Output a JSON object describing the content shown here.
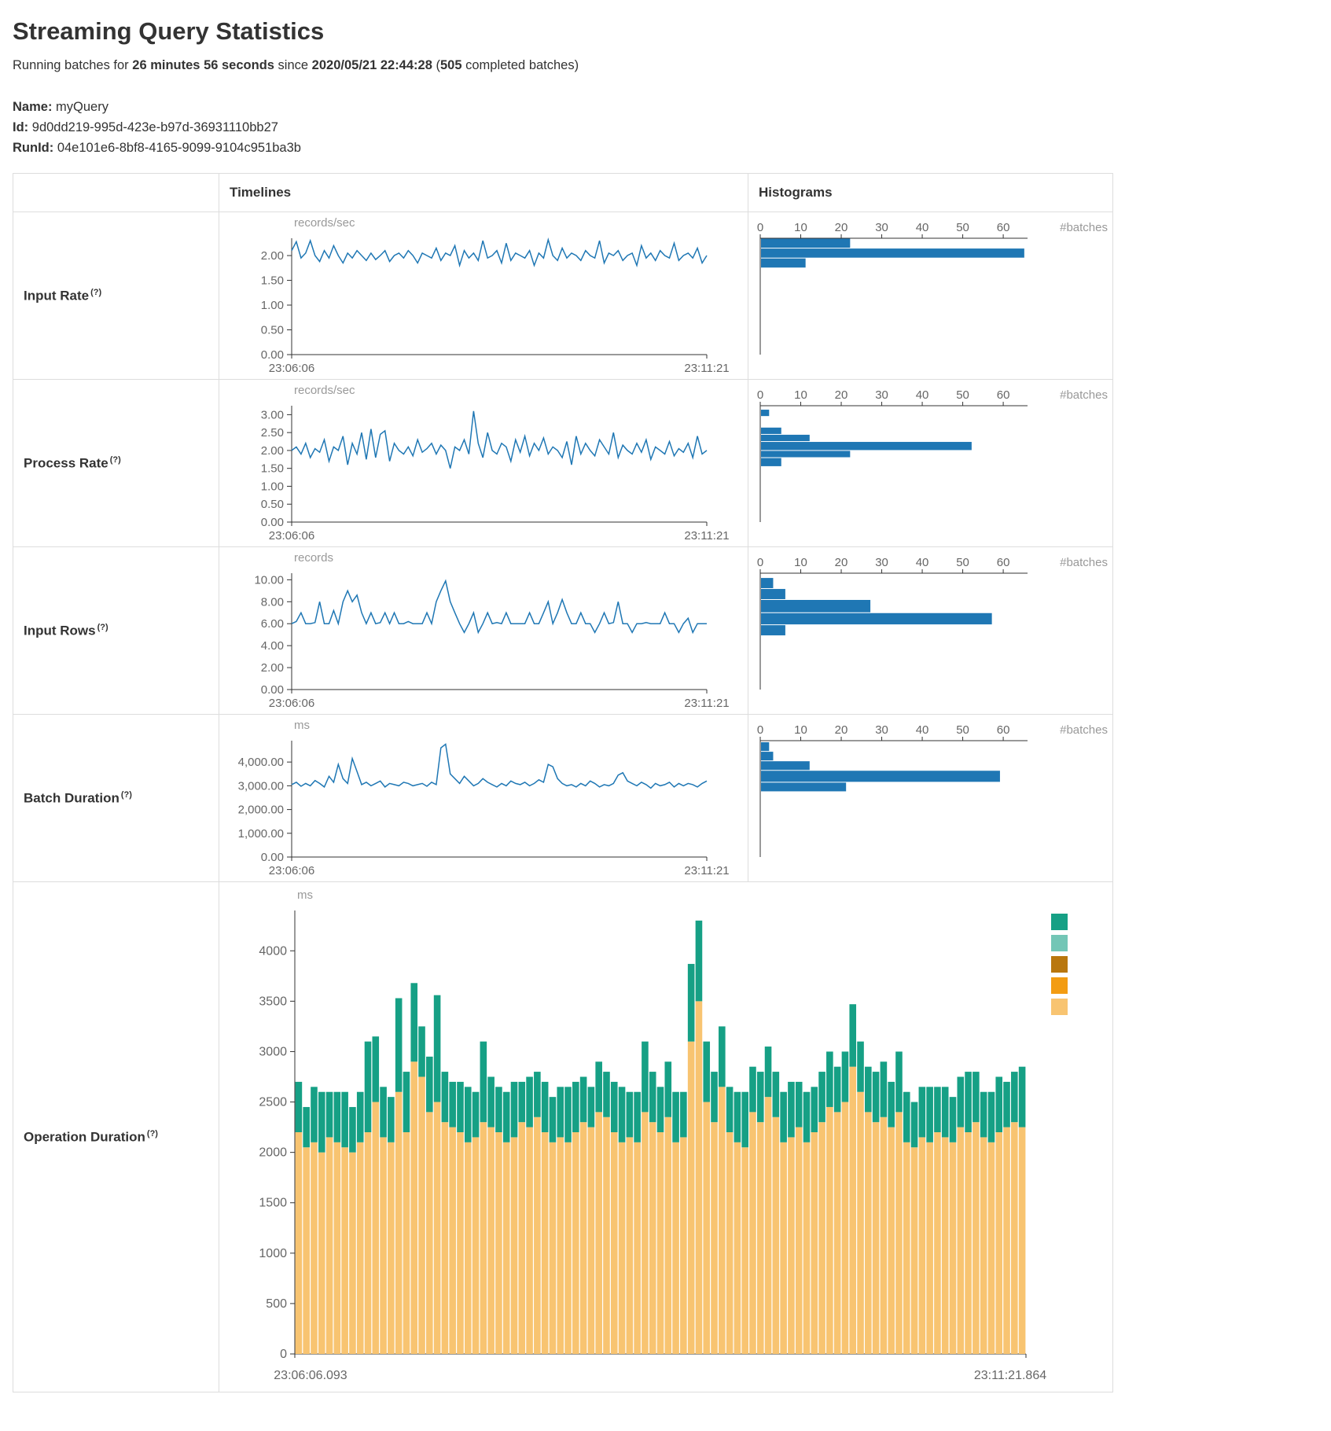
{
  "page": {
    "title": "Streaming Query Statistics",
    "subtitle": {
      "p1": "Running batches for",
      "duration": "26 minutes 56 seconds",
      "p2": "since",
      "start_time": "2020/05/21 22:44:28",
      "p3": "(",
      "completed_count": "505",
      "p4": "completed batches)"
    },
    "name_label": "Name:",
    "name_value": "myQuery",
    "id_label": "Id:",
    "id_value": "9d0dd219-995d-423e-b97d-36931110bb27",
    "runid_label": "RunId:",
    "runid_value": "04e101e6-8bf8-4165-9099-9104c951ba3b",
    "help_marker": "(?)"
  },
  "table": {
    "col_timelines": "Timelines",
    "col_histograms": "Histograms"
  },
  "colors": {
    "timeline_line": "#1f77b4",
    "histogram_bar": "#1f77b4",
    "stack_tan": "#F8C471",
    "stack_teal": "#16A085"
  },
  "chart_data": [
    {
      "id": "input_rate",
      "label": "Input Rate",
      "timeline": {
        "type": "line",
        "unit": "records/sec",
        "color": "#1f77b4",
        "ylim": [
          0,
          2.35
        ],
        "yticks": [
          0,
          0.5,
          1,
          1.5,
          2
        ],
        "ytick_labels": [
          "0.00",
          "0.50",
          "1.00",
          "1.50",
          "2.00"
        ],
        "x_start": "23:06:06",
        "x_end": "23:11:21",
        "values": [
          2.1,
          2.28,
          1.95,
          2.05,
          2.3,
          2.0,
          1.88,
          2.1,
          1.95,
          2.2,
          2.0,
          1.85,
          2.05,
          1.95,
          2.1,
          2.0,
          1.9,
          2.05,
          1.92,
          2.0,
          2.1,
          1.88,
          2.0,
          2.05,
          1.95,
          2.1,
          2.0,
          1.85,
          2.05,
          2.0,
          1.95,
          2.15,
          1.9,
          2.05,
          2.0,
          2.2,
          1.8,
          2.1,
          1.95,
          2.05,
          1.9,
          2.3,
          1.95,
          2.0,
          2.1,
          1.85,
          2.25,
          1.9,
          2.05,
          2.0,
          1.95,
          2.1,
          1.8,
          2.05,
          1.95,
          2.32,
          2.0,
          1.9,
          2.15,
          1.95,
          2.05,
          2.0,
          1.9,
          2.1,
          2.0,
          1.95,
          2.3,
          1.85,
          2.05,
          2.0,
          2.1,
          1.9,
          2.0,
          2.05,
          1.8,
          2.2,
          1.95,
          2.05,
          1.9,
          2.1,
          2.0,
          1.95,
          2.25,
          1.9,
          2.0,
          2.05,
          1.95,
          2.15,
          1.85,
          2.0
        ]
      },
      "histogram": {
        "type": "hbar",
        "unit": "#batches",
        "color": "#1f77b4",
        "xlim": [
          0,
          66
        ],
        "xticks": [
          0,
          10,
          20,
          30,
          40,
          50,
          60
        ],
        "ylim": [
          0,
          2.35
        ],
        "bins": [
          {
            "range": [
              2.15,
              2.35
            ],
            "count": 22
          },
          {
            "range": [
              1.95,
              2.15
            ],
            "count": 65
          },
          {
            "range": [
              1.75,
              1.95
            ],
            "count": 11
          }
        ]
      }
    },
    {
      "id": "process_rate",
      "label": "Process Rate",
      "timeline": {
        "type": "line",
        "unit": "records/sec",
        "color": "#1f77b4",
        "ylim": [
          0,
          3.25
        ],
        "yticks": [
          0,
          0.5,
          1,
          1.5,
          2,
          2.5,
          3
        ],
        "ytick_labels": [
          "0.00",
          "0.50",
          "1.00",
          "1.50",
          "2.00",
          "2.50",
          "3.00"
        ],
        "x_start": "23:06:06",
        "x_end": "23:11:21",
        "values": [
          2.0,
          2.1,
          1.9,
          2.2,
          1.8,
          2.05,
          1.95,
          2.3,
          1.7,
          2.1,
          2.0,
          2.4,
          1.6,
          2.2,
          1.9,
          2.5,
          1.75,
          2.6,
          1.8,
          2.45,
          2.55,
          1.7,
          2.2,
          2.0,
          1.9,
          2.1,
          1.85,
          2.3,
          1.95,
          2.05,
          2.2,
          1.9,
          2.15,
          2.0,
          1.5,
          2.1,
          2.0,
          2.3,
          1.9,
          3.1,
          2.2,
          1.8,
          2.5,
          2.0,
          1.9,
          2.2,
          2.1,
          1.7,
          2.3,
          1.95,
          2.4,
          1.85,
          2.2,
          2.0,
          2.35,
          1.9,
          2.1,
          2.0,
          1.8,
          2.25,
          1.6,
          2.4,
          1.9,
          2.2,
          2.0,
          1.85,
          2.3,
          2.1,
          1.9,
          2.5,
          1.8,
          2.15,
          2.0,
          1.9,
          2.2,
          1.95,
          2.3,
          1.75,
          2.1,
          2.0,
          1.9,
          2.25,
          1.85,
          2.05,
          1.95,
          2.2,
          1.8,
          2.4,
          1.9,
          2.0
        ]
      },
      "histogram": {
        "type": "hbar",
        "unit": "#batches",
        "color": "#1f77b4",
        "xlim": [
          0,
          66
        ],
        "xticks": [
          0,
          10,
          20,
          30,
          40,
          50,
          60
        ],
        "ylim": [
          0,
          3.25
        ],
        "bins": [
          {
            "range": [
              2.95,
              3.15
            ],
            "count": 2
          },
          {
            "range": [
              2.45,
              2.65
            ],
            "count": 5
          },
          {
            "range": [
              2.25,
              2.45
            ],
            "count": 12
          },
          {
            "range": [
              2.0,
              2.25
            ],
            "count": 52
          },
          {
            "range": [
              1.8,
              2.0
            ],
            "count": 22
          },
          {
            "range": [
              1.55,
              1.8
            ],
            "count": 5
          }
        ]
      }
    },
    {
      "id": "input_rows",
      "label": "Input Rows",
      "timeline": {
        "type": "line",
        "unit": "records",
        "color": "#1f77b4",
        "ylim": [
          0,
          10.6
        ],
        "yticks": [
          0,
          2,
          4,
          6,
          8,
          10
        ],
        "ytick_labels": [
          "0.00",
          "2.00",
          "4.00",
          "6.00",
          "8.00",
          "10.00"
        ],
        "x_start": "23:06:06",
        "x_end": "23:11:21",
        "values": [
          6,
          6.2,
          7,
          6,
          6,
          6.1,
          8,
          6,
          6,
          7.2,
          6,
          8,
          9,
          8,
          8.6,
          7,
          6,
          7,
          6,
          6.1,
          7,
          6,
          7,
          6,
          6,
          6.2,
          6,
          6,
          6,
          7,
          6,
          8,
          9,
          9.9,
          8,
          7,
          6,
          5.2,
          6,
          7,
          5.2,
          6,
          7,
          6,
          6.1,
          6,
          7,
          6,
          6,
          6,
          6,
          7,
          6,
          6,
          7,
          8,
          6,
          7,
          8.2,
          7,
          6,
          6,
          7,
          6,
          6,
          5.2,
          6,
          7,
          6,
          6.1,
          8,
          6,
          6,
          5.2,
          6,
          6,
          6.1,
          6,
          6,
          6,
          7,
          6,
          6,
          5.2,
          6,
          6.5,
          5.2,
          6,
          6,
          6
        ]
      },
      "histogram": {
        "type": "hbar",
        "unit": "#batches",
        "color": "#1f77b4",
        "xlim": [
          0,
          66
        ],
        "xticks": [
          0,
          10,
          20,
          30,
          40,
          50,
          60
        ],
        "ylim": [
          0,
          10.6
        ],
        "bins": [
          {
            "range": [
              9.2,
              10.2
            ],
            "count": 3
          },
          {
            "range": [
              8.2,
              9.2
            ],
            "count": 6
          },
          {
            "range": [
              7.0,
              8.2
            ],
            "count": 27
          },
          {
            "range": [
              5.9,
              7.0
            ],
            "count": 57
          },
          {
            "range": [
              4.9,
              5.9
            ],
            "count": 6
          }
        ]
      }
    },
    {
      "id": "batch_duration",
      "label": "Batch Duration",
      "timeline": {
        "type": "line",
        "unit": "ms",
        "color": "#1f77b4",
        "ylim": [
          0,
          4900
        ],
        "yticks": [
          0,
          1000,
          2000,
          3000,
          4000
        ],
        "ytick_labels": [
          "0.00",
          "1,000.00",
          "2,000.00",
          "3,000.00",
          "4,000.00"
        ],
        "x_start": "23:06:06",
        "x_end": "23:11:21",
        "values": [
          3050,
          3150,
          2980,
          3100,
          3000,
          3220,
          3100,
          2950,
          3400,
          3150,
          3900,
          3300,
          3100,
          4150,
          3600,
          3050,
          3150,
          3000,
          3100,
          3200,
          2950,
          3100,
          3050,
          3000,
          3150,
          3100,
          3000,
          3050,
          3100,
          2980,
          3150,
          3050,
          4600,
          4750,
          3500,
          3300,
          3100,
          3400,
          3200,
          3000,
          3100,
          3300,
          3150,
          3050,
          2950,
          3100,
          3000,
          3200,
          3100,
          3050,
          3150,
          3000,
          3100,
          3250,
          3150,
          3900,
          3800,
          3300,
          3100,
          3000,
          3050,
          2950,
          3100,
          3000,
          3200,
          3100,
          2950,
          3050,
          3000,
          3100,
          3450,
          3550,
          3200,
          3100,
          3000,
          3150,
          3050,
          2900,
          3100,
          3000,
          3050,
          3150,
          2950,
          3100,
          3000,
          3100,
          3050,
          2950,
          3100,
          3200
        ]
      },
      "histogram": {
        "type": "hbar",
        "unit": "#batches",
        "color": "#1f77b4",
        "xlim": [
          0,
          66
        ],
        "xticks": [
          0,
          10,
          20,
          30,
          40,
          50,
          60
        ],
        "ylim": [
          0,
          4900
        ],
        "bins": [
          {
            "range": [
              4450,
              4850
            ],
            "count": 2
          },
          {
            "range": [
              4050,
              4450
            ],
            "count": 3
          },
          {
            "range": [
              3650,
              4050
            ],
            "count": 12
          },
          {
            "range": [
              3150,
              3650
            ],
            "count": 59
          },
          {
            "range": [
              2750,
              3150
            ],
            "count": 21
          }
        ]
      }
    },
    {
      "id": "operation_duration",
      "label": "Operation Duration",
      "timeline": {
        "type": "stacked_bar",
        "unit": "ms",
        "ylim": [
          0,
          4400
        ],
        "yticks": [
          0,
          500,
          1000,
          1500,
          2000,
          2500,
          3000,
          3500,
          4000
        ],
        "ytick_labels": [
          "0",
          "500",
          "1000",
          "1500",
          "2000",
          "2500",
          "3000",
          "3500",
          "4000"
        ],
        "x_start": "23:06:06.093",
        "x_end": "23:11:21.864",
        "legend_colors": [
          "#16A085",
          "#73C6B6",
          "#B9770E",
          "#F39C12",
          "#F8C471"
        ],
        "series": [
          {
            "color": "#F8C471",
            "values": [
              2200,
              2050,
              2100,
              2000,
              2150,
              2100,
              2050,
              2000,
              2100,
              2200,
              2500,
              2150,
              2100,
              2600,
              2200,
              2900,
              2750,
              2400,
              2500,
              2300,
              2250,
              2200,
              2100,
              2150,
              2300,
              2250,
              2200,
              2100,
              2150,
              2300,
              2250,
              2350,
              2200,
              2100,
              2150,
              2100,
              2200,
              2300,
              2250,
              2400,
              2350,
              2200,
              2100,
              2150,
              2100,
              2400,
              2300,
              2200,
              2350,
              2100,
              2150,
              3100,
              3500,
              2500,
              2300,
              2650,
              2200,
              2100,
              2050,
              2400,
              2300,
              2550,
              2350,
              2100,
              2150,
              2250,
              2100,
              2200,
              2300,
              2450,
              2400,
              2500,
              2850,
              2600,
              2400,
              2300,
              2350,
              2250,
              2400,
              2100,
              2050,
              2150,
              2100,
              2200,
              2150,
              2100,
              2250,
              2200,
              2300,
              2150,
              2100,
              2200,
              2250,
              2300,
              2250
            ]
          },
          {
            "color": "#16A085",
            "values": [
              500,
              400,
              550,
              600,
              450,
              500,
              550,
              450,
              500,
              900,
              650,
              500,
              450,
              930,
              600,
              780,
              500,
              550,
              1060,
              500,
              450,
              500,
              550,
              450,
              800,
              500,
              450,
              500,
              550,
              400,
              500,
              450,
              500,
              450,
              500,
              550,
              500,
              450,
              400,
              500,
              450,
              500,
              550,
              450,
              500,
              700,
              500,
              450,
              550,
              500,
              450,
              770,
              800,
              600,
              500,
              600,
              450,
              500,
              550,
              450,
              500,
              500,
              450,
              500,
              550,
              450,
              500,
              450,
              500,
              550,
              450,
              500,
              620,
              500,
              450,
              500,
              550,
              450,
              600,
              500,
              450,
              500,
              550,
              450,
              500,
              450,
              500,
              600,
              500,
              450,
              500,
              550,
              450,
              500,
              600
            ]
          }
        ]
      }
    }
  ]
}
